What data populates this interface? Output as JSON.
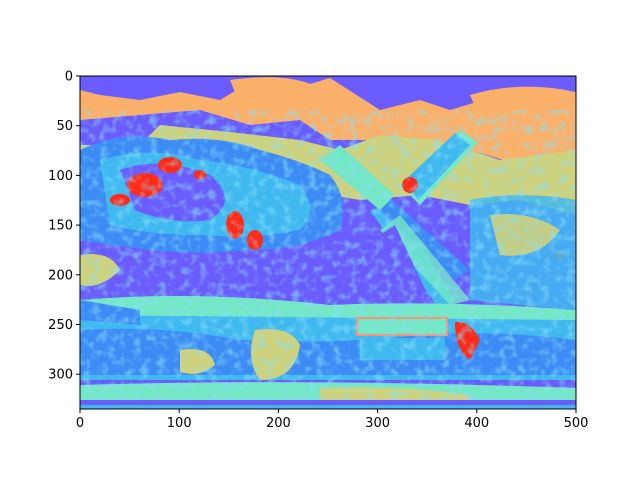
{
  "image": {
    "description_type": "segmented color-quantized photo (windmill scene) in matplotlib axes",
    "palette": [
      "#5f43f6",
      "#6a5cff",
      "#3d8cf6",
      "#40b8f0",
      "#74e7c4",
      "#cfd27c",
      "#fbb06a",
      "#ff2a18",
      "#ff8d6a"
    ]
  },
  "axes": {
    "x_ticks": [
      "0",
      "100",
      "200",
      "300",
      "400",
      "500"
    ],
    "y_ticks": [
      "0",
      "50",
      "100",
      "150",
      "200",
      "250",
      "300"
    ],
    "xlim": [
      0,
      500
    ],
    "ylim": [
      335,
      0
    ]
  }
}
